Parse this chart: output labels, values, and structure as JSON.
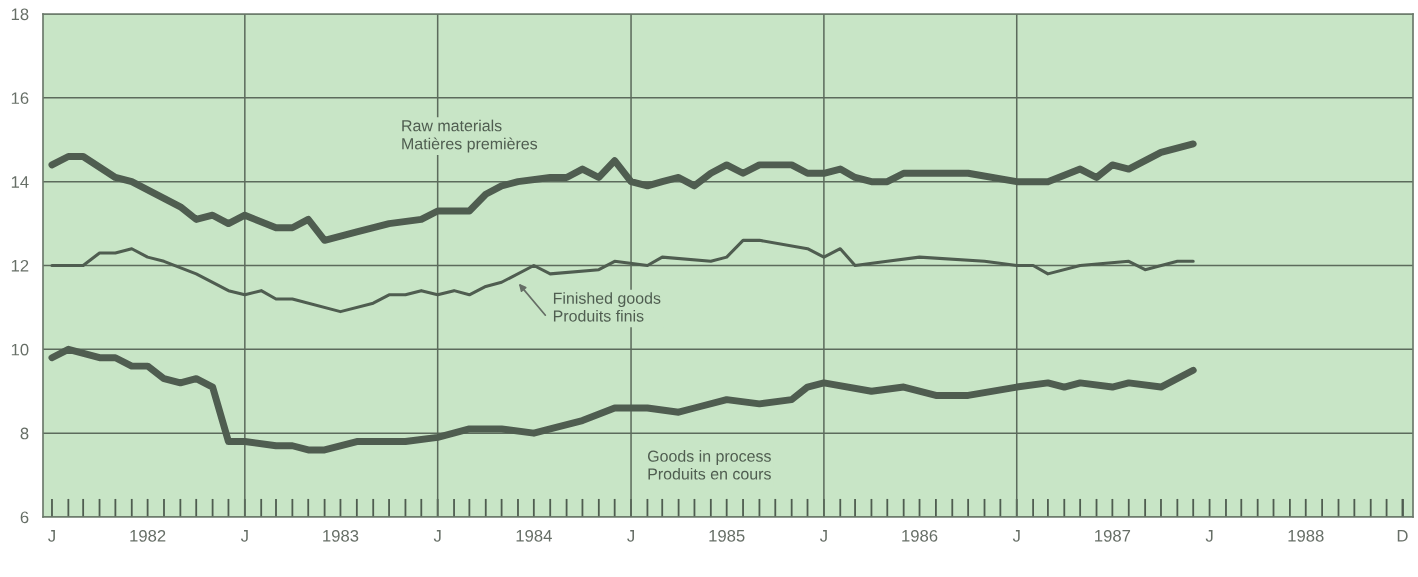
{
  "chart_data": {
    "type": "line",
    "series": [
      {
        "name": "Raw materials\nMatières premières",
        "color": "#4f5d50",
        "x": [
          "1982-01",
          "1982-02",
          "1982-03",
          "1982-05",
          "1982-06",
          "1982-08",
          "1982-09",
          "1982-10",
          "1982-11",
          "1982-12",
          "1983-01",
          "1983-03",
          "1983-04",
          "1983-05",
          "1983-06",
          "1983-08",
          "1983-10",
          "1983-12",
          "1984-01",
          "1984-03",
          "1984-04",
          "1984-05",
          "1984-06",
          "1984-08",
          "1984-09",
          "1984-10",
          "1984-11",
          "1984-12",
          "1985-01",
          "1985-02",
          "1985-03",
          "1985-04",
          "1985-05",
          "1985-06",
          "1985-07",
          "1985-08",
          "1985-09",
          "1985-11",
          "1985-12",
          "1986-01",
          "1986-02",
          "1986-03",
          "1986-04",
          "1986-05",
          "1986-06",
          "1986-10",
          "1987-01",
          "1987-03",
          "1987-05",
          "1987-06",
          "1987-07",
          "1987-08",
          "1987-10",
          "1987-12"
        ],
        "values": [
          14.4,
          14.6,
          14.6,
          14.1,
          14.0,
          13.6,
          13.4,
          13.1,
          13.2,
          13.0,
          13.2,
          12.9,
          12.9,
          13.1,
          12.6,
          12.8,
          13.0,
          13.1,
          13.3,
          13.3,
          13.7,
          13.9,
          14.0,
          14.1,
          14.1,
          14.3,
          14.1,
          14.5,
          14.0,
          13.9,
          14.0,
          14.1,
          13.9,
          14.2,
          14.4,
          14.2,
          14.4,
          14.4,
          14.2,
          14.2,
          14.3,
          14.1,
          14.0,
          14.0,
          14.2,
          14.2,
          14.0,
          14.0,
          14.3,
          14.1,
          14.4,
          14.3,
          14.7,
          14.9
        ]
      },
      {
        "name": "Finished goods\nProduits finis",
        "color": "#4f5d50",
        "x": [
          "1982-01",
          "1982-03",
          "1982-04",
          "1982-05",
          "1982-06",
          "1982-07",
          "1982-08",
          "1982-10",
          "1982-11",
          "1982-12",
          "1983-01",
          "1983-02",
          "1983-03",
          "1983-04",
          "1983-07",
          "1983-09",
          "1983-10",
          "1983-11",
          "1983-12",
          "1984-01",
          "1984-02",
          "1984-03",
          "1984-04",
          "1984-05",
          "1984-07",
          "1984-08",
          "1984-11",
          "1984-12",
          "1985-02",
          "1985-03",
          "1985-06",
          "1985-07",
          "1985-08",
          "1985-09",
          "1985-12",
          "1986-01",
          "1986-02",
          "1986-03",
          "1986-05",
          "1986-07",
          "1986-11",
          "1987-01",
          "1987-02",
          "1987-03",
          "1987-05",
          "1987-08",
          "1987-09",
          "1987-11",
          "1987-12"
        ],
        "values": [
          12.0,
          12.0,
          12.3,
          12.3,
          12.4,
          12.2,
          12.1,
          11.8,
          11.6,
          11.4,
          11.3,
          11.4,
          11.2,
          11.2,
          10.9,
          11.1,
          11.3,
          11.3,
          11.4,
          11.3,
          11.4,
          11.3,
          11.5,
          11.6,
          12.0,
          11.8,
          11.9,
          12.1,
          12.0,
          12.2,
          12.1,
          12.2,
          12.6,
          12.6,
          12.4,
          12.2,
          12.4,
          12.0,
          12.1,
          12.2,
          12.1,
          12.0,
          12.0,
          11.8,
          12.0,
          12.1,
          11.9,
          12.1,
          12.1
        ]
      },
      {
        "name": "Goods in process\nProduits en cours",
        "color": "#4f5d50",
        "x": [
          "1982-01",
          "1982-02",
          "1982-04",
          "1982-05",
          "1982-06",
          "1982-07",
          "1982-08",
          "1982-09",
          "1982-10",
          "1982-11",
          "1982-12",
          "1983-01",
          "1983-03",
          "1983-04",
          "1983-05",
          "1983-06",
          "1983-08",
          "1983-11",
          "1984-01",
          "1984-03",
          "1984-05",
          "1984-07",
          "1984-08",
          "1984-10",
          "1984-12",
          "1985-02",
          "1985-04",
          "1985-05",
          "1985-07",
          "1985-09",
          "1985-11",
          "1985-12",
          "1986-01",
          "1986-04",
          "1986-06",
          "1986-08",
          "1986-10",
          "1987-01",
          "1987-03",
          "1987-04",
          "1987-05",
          "1987-07",
          "1987-08",
          "1987-10",
          "1987-12"
        ],
        "values": [
          9.8,
          10.0,
          9.8,
          9.8,
          9.6,
          9.6,
          9.3,
          9.2,
          9.3,
          9.1,
          7.8,
          7.8,
          7.7,
          7.7,
          7.6,
          7.6,
          7.8,
          7.8,
          7.9,
          8.1,
          8.1,
          8.0,
          8.1,
          8.3,
          8.6,
          8.6,
          8.5,
          8.6,
          8.8,
          8.7,
          8.8,
          9.1,
          9.2,
          9.0,
          9.1,
          8.9,
          8.9,
          9.1,
          9.2,
          9.1,
          9.2,
          9.1,
          9.2,
          9.1,
          9.5
        ]
      }
    ],
    "xlim": [
      "1981-12-15",
      "1989-01-20"
    ],
    "xticks": [
      {
        "value": "1982-01-01",
        "label": "J"
      },
      {
        "value": "1982-07-01",
        "label": "1982"
      },
      {
        "value": "1983-01-01",
        "label": "J"
      },
      {
        "value": "1983-07-01",
        "label": "1983"
      },
      {
        "value": "1984-01-01",
        "label": "J"
      },
      {
        "value": "1984-07-01",
        "label": "1984"
      },
      {
        "value": "1985-01-01",
        "label": "J"
      },
      {
        "value": "1985-07-01",
        "label": "1985"
      },
      {
        "value": "1986-01-01",
        "label": "J"
      },
      {
        "value": "1986-07-01",
        "label": "1986"
      },
      {
        "value": "1987-01-01",
        "label": "J"
      },
      {
        "value": "1987-07-01",
        "label": "1987"
      },
      {
        "value": "1988-01-01",
        "label": "J"
      },
      {
        "value": "1988-07-01",
        "label": "1988"
      },
      {
        "value": "1988-12-31",
        "label": "D"
      }
    ],
    "ylim": [
      6,
      18
    ],
    "yticks": [
      6,
      8,
      10,
      12,
      14,
      16,
      18
    ],
    "grid": "y",
    "legend": false,
    "marker": "none",
    "line_style": "solid",
    "ref_lines": [
      {
        "axis": "x",
        "value": "1983-01-01",
        "color": "#5c6b5c"
      },
      {
        "axis": "x",
        "value": "1984-01-01",
        "color": "#5c6b5c"
      },
      {
        "axis": "x",
        "value": "1985-01-01",
        "color": "#5c6b5c"
      },
      {
        "axis": "x",
        "value": "1986-01-01",
        "color": "#5c6b5c"
      },
      {
        "axis": "x",
        "value": "1987-01-01",
        "color": "#5c6b5c"
      }
    ]
  }
}
